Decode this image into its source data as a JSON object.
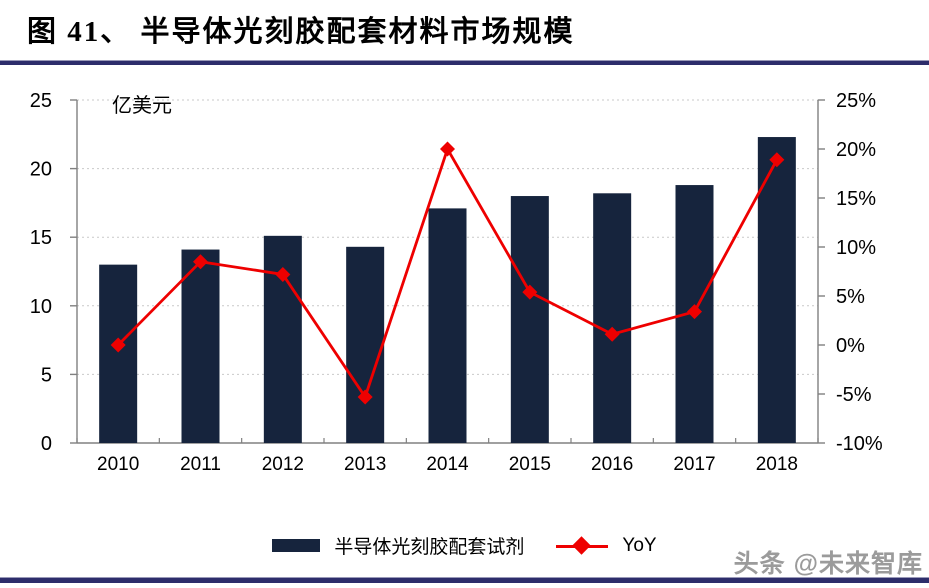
{
  "page": {
    "title": "图 41、 半导体光刻胶配套材料市场规模",
    "watermark": "头条 @未来智库"
  },
  "colors": {
    "bar": "#16243D",
    "line": "#EE0000",
    "rule": "#2D2D6B",
    "grid": "#C9C9C9",
    "axis": "#808080",
    "text": "#000000"
  },
  "legend": {
    "bar_label": "半导体光刻胶配套试剂",
    "line_label": "YoY"
  },
  "chart_data": {
    "type": "combo",
    "title": "半导体光刻胶配套材料市场规模",
    "unit_label": "亿美元",
    "categories": [
      "2010",
      "2011",
      "2012",
      "2013",
      "2014",
      "2015",
      "2016",
      "2017",
      "2018"
    ],
    "series": [
      {
        "name": "半导体光刻胶配套试剂",
        "type": "bar",
        "axis": "left",
        "unit": "亿美元",
        "values": [
          13.0,
          14.1,
          15.1,
          14.3,
          17.1,
          18.0,
          18.2,
          18.8,
          22.3
        ]
      },
      {
        "name": "YoY",
        "type": "line",
        "axis": "right",
        "unit": "%",
        "values": [
          0.0,
          8.5,
          7.2,
          -5.3,
          20.0,
          5.4,
          1.1,
          3.4,
          18.9
        ]
      }
    ],
    "left_axis": {
      "min": 0,
      "max": 25,
      "step": 5,
      "tick_labels": [
        "0",
        "5",
        "10",
        "15",
        "20",
        "25"
      ]
    },
    "right_axis": {
      "min": -10,
      "max": 25,
      "step": 5,
      "tick_labels": [
        "-10%",
        "-5%",
        "0%",
        "5%",
        "10%",
        "15%",
        "20%",
        "25%"
      ]
    },
    "grid": true,
    "legend_position": "bottom"
  }
}
